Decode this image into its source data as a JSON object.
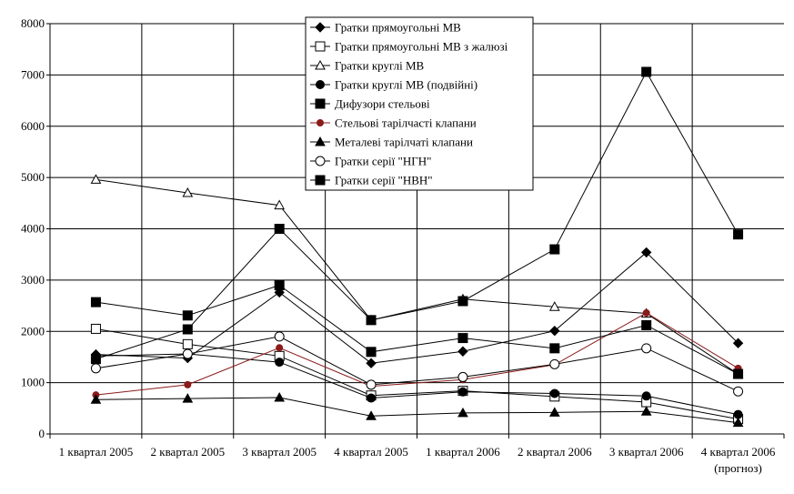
{
  "chart_data": {
    "type": "line",
    "title": "",
    "xlabel": "",
    "ylabel": "",
    "ylim": [
      0,
      8000
    ],
    "yticks": [
      0,
      1000,
      2000,
      3000,
      4000,
      5000,
      6000,
      7000,
      8000
    ],
    "grid": true,
    "legend_position": "top-center",
    "categories": [
      [
        "1 квартал 2005"
      ],
      [
        "2 квартал 2005"
      ],
      [
        "3 квартал 2005"
      ],
      [
        "4 квартал 2005"
      ],
      [
        "1 квартал 2006"
      ],
      [
        "2 квартал 2006"
      ],
      [
        "3 квартал 2006"
      ],
      [
        "4 квартал 2006",
        "(прогноз)"
      ]
    ],
    "series": [
      {
        "name": "Гратки прямоугольні МВ",
        "marker": "diamond-filled",
        "color": "#000000",
        "values": [
          1550,
          1480,
          2760,
          1380,
          1610,
          2010,
          3540,
          1770
        ]
      },
      {
        "name": "Гратки прямоугольні МВ з жалюзі",
        "marker": "square-open",
        "color": "#000000",
        "values": [
          2050,
          1750,
          1520,
          750,
          840,
          730,
          620,
          290
        ]
      },
      {
        "name": "Гратки круглі МВ",
        "marker": "triangle-open",
        "color": "#000000",
        "values": [
          4960,
          4700,
          4460,
          2220,
          2630,
          2480,
          2350,
          1170
        ]
      },
      {
        "name": "Гратки круглі МВ (подвійні)",
        "marker": "circle-filled",
        "color": "#000000",
        "values": [
          1520,
          1560,
          1400,
          700,
          820,
          790,
          740,
          380
        ]
      },
      {
        "name": "Дифузори стельові",
        "marker": "square-filled",
        "color": "#000000",
        "values": [
          1460,
          2040,
          4000,
          2220,
          2590,
          3600,
          7060,
          3890
        ]
      },
      {
        "name": "Стельові тарілчасті клапани",
        "marker": "circle-filled-small",
        "color": "#8b1a1a",
        "values": [
          760,
          960,
          1680,
          930,
          1060,
          1350,
          2360,
          1280
        ]
      },
      {
        "name": "Металеві тарілчаті клапани",
        "marker": "triangle-filled",
        "color": "#000000",
        "values": [
          670,
          690,
          710,
          350,
          410,
          420,
          440,
          220
        ]
      },
      {
        "name": "Гратки серії \"НГН\"",
        "marker": "circle-open",
        "color": "#000000",
        "values": [
          1280,
          1560,
          1900,
          960,
          1110,
          1360,
          1670,
          830
        ]
      },
      {
        "name": "Гратки серії \"НВН\"",
        "marker": "square-filled",
        "color": "#000000",
        "values": [
          2570,
          2310,
          2900,
          1600,
          1870,
          1670,
          2120,
          1170
        ]
      }
    ]
  }
}
